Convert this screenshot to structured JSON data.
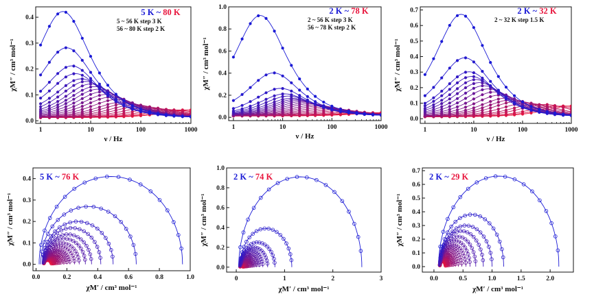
{
  "colors": {
    "cold": "#1a1ad6",
    "hot": "#e8143c",
    "axis": "#111111"
  },
  "chart_data": [
    {
      "type": "line",
      "title_low": "5 K",
      "title_sep": " ~ ",
      "title_high": "80 K",
      "notes": [
        "5 ~ 56 K step 3 K",
        "56 ~ 80 K step 2 K"
      ],
      "xlabel": "ν / Hz",
      "ylabel": "χM″ / cm³ mol⁻¹",
      "x_scale": "log",
      "xlim": [
        0.8,
        1000
      ],
      "ylim": [
        -0.01,
        0.44
      ],
      "xticks": [
        1,
        10,
        100,
        1000
      ],
      "xtick_labels": [
        "1",
        "10",
        "100",
        "1000"
      ],
      "yticks": [
        0.0,
        0.1,
        0.2,
        0.3,
        0.4
      ],
      "ytick_labels": [
        "0.0",
        "0.1",
        "0.2",
        "0.3",
        "0.4"
      ],
      "x": [
        1,
        1.5,
        2.2,
        3.2,
        4.6,
        6.8,
        10,
        15,
        22,
        32,
        46,
        68,
        100,
        150,
        220,
        320,
        460,
        680,
        1000
      ],
      "series": [
        {
          "label": "5 K",
          "peak": 0.41,
          "fpeak": 2.8
        },
        {
          "peak": 0.27,
          "fpeak": 3.3
        },
        {
          "peak": 0.2,
          "fpeak": 4.2
        },
        {
          "peak": 0.17,
          "fpeak": 5.0
        },
        {
          "peak": 0.15,
          "fpeak": 6.5
        },
        {
          "peak": 0.14,
          "fpeak": 8.0
        },
        {
          "peak": 0.13,
          "fpeak": 10
        },
        {
          "peak": 0.12,
          "fpeak": 12
        },
        {
          "peak": 0.11,
          "fpeak": 14
        },
        {
          "peak": 0.1,
          "fpeak": 17
        },
        {
          "peak": 0.09,
          "fpeak": 21
        },
        {
          "peak": 0.08,
          "fpeak": 26
        },
        {
          "peak": 0.07,
          "fpeak": 33
        },
        {
          "peak": 0.06,
          "fpeak": 42
        },
        {
          "peak": 0.055,
          "fpeak": 55
        },
        {
          "peak": 0.05,
          "fpeak": 75
        },
        {
          "peak": 0.045,
          "fpeak": 100
        },
        {
          "peak": 0.04,
          "fpeak": 140
        },
        {
          "peak": 0.035,
          "fpeak": 200
        },
        {
          "peak": 0.032,
          "fpeak": 300
        },
        {
          "peak": 0.03,
          "fpeak": 450
        },
        {
          "peak": 0.03,
          "fpeak": 700
        },
        {
          "label": "80 K",
          "peak": 0.03,
          "fpeak": 1000
        }
      ]
    },
    {
      "type": "line",
      "title_low": "2 K",
      "title_sep": " ~ ",
      "title_high": "78 K",
      "notes": [
        "2 ~ 56 K step 3 K",
        "56 ~ 78 K step 2 K"
      ],
      "xlabel": "ν / Hz",
      "ylabel": "χM″ / cm³ mol⁻¹",
      "x_scale": "log",
      "xlim": [
        0.8,
        1000
      ],
      "ylim": [
        -0.03,
        1.0
      ],
      "xticks": [
        1,
        10,
        100,
        1000
      ],
      "xtick_labels": [
        "1",
        "10",
        "100",
        "1000"
      ],
      "yticks": [
        0.0,
        0.2,
        0.4,
        0.6,
        0.8,
        1.0
      ],
      "ytick_labels": [
        "0.0",
        "0.2",
        "0.4",
        "0.6",
        "0.8",
        "1.0"
      ],
      "x": [
        1,
        1.5,
        2.2,
        3.2,
        4.6,
        6.8,
        10,
        15,
        22,
        32,
        46,
        68,
        100,
        150,
        220,
        320,
        460,
        680,
        1000
      ],
      "series": [
        {
          "label": "2 K",
          "peak": 0.91,
          "fpeak": 3.5
        },
        {
          "peak": 0.39,
          "fpeak": 6.5
        },
        {
          "peak": 0.25,
          "fpeak": 9
        },
        {
          "peak": 0.2,
          "fpeak": 11
        },
        {
          "peak": 0.18,
          "fpeak": 13
        },
        {
          "peak": 0.16,
          "fpeak": 15
        },
        {
          "peak": 0.15,
          "fpeak": 18
        },
        {
          "peak": 0.14,
          "fpeak": 21
        },
        {
          "peak": 0.13,
          "fpeak": 25
        },
        {
          "peak": 0.12,
          "fpeak": 30
        },
        {
          "peak": 0.11,
          "fpeak": 36
        },
        {
          "peak": 0.1,
          "fpeak": 45
        },
        {
          "peak": 0.09,
          "fpeak": 55
        },
        {
          "peak": 0.08,
          "fpeak": 70
        },
        {
          "peak": 0.07,
          "fpeak": 90
        },
        {
          "peak": 0.06,
          "fpeak": 120
        },
        {
          "peak": 0.05,
          "fpeak": 160
        },
        {
          "peak": 0.04,
          "fpeak": 220
        },
        {
          "peak": 0.035,
          "fpeak": 320
        },
        {
          "peak": 0.03,
          "fpeak": 450
        },
        {
          "peak": 0.03,
          "fpeak": 650
        },
        {
          "label": "78 K",
          "peak": 0.03,
          "fpeak": 1000
        }
      ]
    },
    {
      "type": "line",
      "title_low": "2 K",
      "title_sep": " ~ ",
      "title_high": "32 K",
      "notes": [
        "2 ~ 32 K step 1.5 K"
      ],
      "xlabel": "ν / Hz",
      "ylabel": "χM″ / cm³ mol⁻¹",
      "x_scale": "log",
      "xlim": [
        0.8,
        1000
      ],
      "ylim": [
        -0.03,
        0.72
      ],
      "xticks": [
        1,
        10,
        100,
        1000
      ],
      "xtick_labels": [
        "1",
        "10",
        "100",
        "1000"
      ],
      "yticks": [
        0.0,
        0.1,
        0.2,
        0.3,
        0.4,
        0.5,
        0.6,
        0.7
      ],
      "ytick_labels": [
        "0.0",
        "0.1",
        "0.2",
        "0.3",
        "0.4",
        "0.5",
        "0.6",
        "0.7"
      ],
      "x": [
        1,
        1.5,
        2.2,
        3.2,
        4.6,
        6.8,
        10,
        15,
        22,
        32,
        46,
        68,
        100,
        150,
        220,
        320,
        460,
        680,
        1000
      ],
      "series": [
        {
          "label": "2 K",
          "peak": 0.66,
          "fpeak": 5.5
        },
        {
          "peak": 0.38,
          "fpeak": 6.5
        },
        {
          "peak": 0.29,
          "fpeak": 8
        },
        {
          "peak": 0.26,
          "fpeak": 9
        },
        {
          "peak": 0.24,
          "fpeak": 11
        },
        {
          "peak": 0.22,
          "fpeak": 13
        },
        {
          "peak": 0.2,
          "fpeak": 16
        },
        {
          "peak": 0.18,
          "fpeak": 20
        },
        {
          "peak": 0.16,
          "fpeak": 26
        },
        {
          "peak": 0.14,
          "fpeak": 34
        },
        {
          "peak": 0.12,
          "fpeak": 45
        },
        {
          "peak": 0.11,
          "fpeak": 60
        },
        {
          "peak": 0.1,
          "fpeak": 80
        },
        {
          "peak": 0.09,
          "fpeak": 120
        },
        {
          "peak": 0.08,
          "fpeak": 180
        },
        {
          "peak": 0.08,
          "fpeak": 280
        },
        {
          "peak": 0.07,
          "fpeak": 450
        },
        {
          "peak": 0.07,
          "fpeak": 700
        },
        {
          "label": "32 K",
          "peak": 0.07,
          "fpeak": 1000
        }
      ]
    },
    {
      "type": "scatter",
      "title_low": "5 K",
      "title_sep": " ~ ",
      "title_high": "76 K",
      "xlabel": "χM′ / cm³ mol⁻¹",
      "ylabel": "χM″ / cm³ mol⁻¹",
      "xlim": [
        -0.02,
        1.0
      ],
      "ylim": [
        -0.03,
        0.45
      ],
      "xticks": [
        0.0,
        0.2,
        0.4,
        0.6,
        0.8,
        1.0
      ],
      "xtick_labels": [
        "0.0",
        "0.2",
        "0.4",
        "0.6",
        "0.8",
        "1.0"
      ],
      "yticks": [
        0.0,
        0.1,
        0.2,
        0.3,
        0.4
      ],
      "ytick_labels": [
        "0.0",
        "0.1",
        "0.2",
        "0.3",
        "0.4"
      ],
      "series": [
        {
          "label": "5 K",
          "chiS": 0.02,
          "chiT": 0.95,
          "top": 0.41
        },
        {
          "chiS": 0.03,
          "chiT": 0.65,
          "top": 0.27
        },
        {
          "chiS": 0.04,
          "chiT": 0.5,
          "top": 0.2
        },
        {
          "chiS": 0.045,
          "chiT": 0.42,
          "top": 0.17
        },
        {
          "chiS": 0.05,
          "chiT": 0.36,
          "top": 0.14
        },
        {
          "chiS": 0.05,
          "chiT": 0.32,
          "top": 0.12
        },
        {
          "chiS": 0.05,
          "chiT": 0.28,
          "top": 0.1
        },
        {
          "chiS": 0.05,
          "chiT": 0.25,
          "top": 0.085
        },
        {
          "chiS": 0.05,
          "chiT": 0.22,
          "top": 0.07
        },
        {
          "chiS": 0.05,
          "chiT": 0.2,
          "top": 0.06
        },
        {
          "chiS": 0.05,
          "chiT": 0.18,
          "top": 0.05
        },
        {
          "chiS": 0.05,
          "chiT": 0.16,
          "top": 0.045
        },
        {
          "chiS": 0.05,
          "chiT": 0.15,
          "top": 0.04
        },
        {
          "chiS": 0.05,
          "chiT": 0.14,
          "top": 0.035
        },
        {
          "chiS": 0.05,
          "chiT": 0.13,
          "top": 0.03
        },
        {
          "chiS": 0.05,
          "chiT": 0.12,
          "top": 0.028
        },
        {
          "chiS": 0.05,
          "chiT": 0.115,
          "top": 0.025
        },
        {
          "chiS": 0.05,
          "chiT": 0.11,
          "top": 0.022
        },
        {
          "label": "76 K",
          "chiS": 0.05,
          "chiT": 0.1,
          "top": 0.02
        }
      ]
    },
    {
      "type": "scatter",
      "title_low": "2 K",
      "title_sep": " ~ ",
      "title_high": "74 K",
      "xlabel": "χM′ / cm³ mol⁻¹",
      "ylabel": "χM″ / cm³ mol⁻¹",
      "xlim": [
        -0.2,
        3.0
      ],
      "ylim": [
        -0.05,
        1.0
      ],
      "xticks": [
        0,
        1,
        2,
        3
      ],
      "xtick_labels": [
        "0",
        "1",
        "2",
        "3"
      ],
      "yticks": [
        0.0,
        0.2,
        0.4,
        0.6,
        0.8,
        1.0
      ],
      "ytick_labels": [
        "0.0",
        "0.2",
        "0.4",
        "0.6",
        "0.8",
        "1.0"
      ],
      "series": [
        {
          "label": "2 K",
          "chiS": 0.05,
          "chiT": 2.6,
          "top": 0.91
        },
        {
          "chiS": 0.08,
          "chiT": 1.15,
          "top": 0.39
        },
        {
          "chiS": 0.08,
          "chiT": 0.8,
          "top": 0.25
        },
        {
          "chiS": 0.08,
          "chiT": 0.65,
          "top": 0.2
        },
        {
          "chiS": 0.08,
          "chiT": 0.55,
          "top": 0.17
        },
        {
          "chiS": 0.08,
          "chiT": 0.48,
          "top": 0.14
        },
        {
          "chiS": 0.08,
          "chiT": 0.42,
          "top": 0.12
        },
        {
          "chiS": 0.08,
          "chiT": 0.37,
          "top": 0.1
        },
        {
          "chiS": 0.08,
          "chiT": 0.33,
          "top": 0.085
        },
        {
          "chiS": 0.08,
          "chiT": 0.29,
          "top": 0.07
        },
        {
          "chiS": 0.08,
          "chiT": 0.26,
          "top": 0.06
        },
        {
          "chiS": 0.08,
          "chiT": 0.23,
          "top": 0.05
        },
        {
          "chiS": 0.08,
          "chiT": 0.21,
          "top": 0.045
        },
        {
          "chiS": 0.08,
          "chiT": 0.19,
          "top": 0.04
        },
        {
          "chiS": 0.08,
          "chiT": 0.17,
          "top": 0.035
        },
        {
          "chiS": 0.08,
          "chiT": 0.15,
          "top": 0.03
        },
        {
          "label": "74 K",
          "chiS": 0.08,
          "chiT": 0.14,
          "top": 0.025
        }
      ]
    },
    {
      "type": "scatter",
      "title_low": "2 K",
      "title_sep": " ~ ",
      "title_high": "29 K",
      "xlabel": "χM′ / cm³ mol⁻¹",
      "ylabel": "χM″ / cm³ mol⁻¹",
      "xlim": [
        -0.2,
        2.4
      ],
      "ylim": [
        -0.04,
        0.72
      ],
      "xticks": [
        0.0,
        0.5,
        1.0,
        1.5,
        2.0
      ],
      "xtick_labels": [
        "0.0",
        "0.5",
        "1.0",
        "1.5",
        "2.0"
      ],
      "yticks": [
        0.0,
        0.1,
        0.2,
        0.3,
        0.4,
        0.5,
        0.6,
        0.7
      ],
      "ytick_labels": [
        "0.0",
        "0.1",
        "0.2",
        "0.3",
        "0.4",
        "0.5",
        "0.6",
        "0.7"
      ],
      "series": [
        {
          "label": "2 K",
          "chiS": 0.08,
          "chiT": 2.15,
          "top": 0.66
        },
        {
          "chiS": 0.1,
          "chiT": 1.2,
          "top": 0.38
        },
        {
          "chiS": 0.1,
          "chiT": 1.0,
          "top": 0.3
        },
        {
          "chiS": 0.1,
          "chiT": 0.85,
          "top": 0.26
        },
        {
          "chiS": 0.1,
          "chiT": 0.72,
          "top": 0.22
        },
        {
          "chiS": 0.1,
          "chiT": 0.62,
          "top": 0.19
        },
        {
          "chiS": 0.1,
          "chiT": 0.55,
          "top": 0.16
        },
        {
          "chiS": 0.1,
          "chiT": 0.48,
          "top": 0.14
        },
        {
          "chiS": 0.1,
          "chiT": 0.42,
          "top": 0.12
        },
        {
          "chiS": 0.1,
          "chiT": 0.37,
          "top": 0.1
        },
        {
          "chiS": 0.1,
          "chiT": 0.33,
          "top": 0.085
        },
        {
          "chiS": 0.1,
          "chiT": 0.3,
          "top": 0.075
        },
        {
          "chiS": 0.1,
          "chiT": 0.27,
          "top": 0.065
        },
        {
          "chiS": 0.1,
          "chiT": 0.25,
          "top": 0.055
        },
        {
          "chiS": 0.1,
          "chiT": 0.23,
          "top": 0.05
        },
        {
          "chiS": 0.1,
          "chiT": 0.21,
          "top": 0.045
        },
        {
          "label": "29 K",
          "chiS": 0.1,
          "chiT": 0.2,
          "top": 0.04
        }
      ]
    }
  ]
}
